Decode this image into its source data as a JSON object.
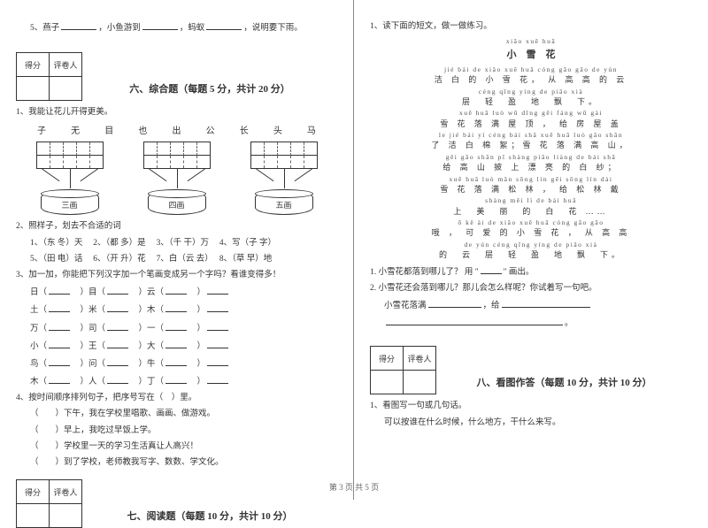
{
  "left": {
    "q5": {
      "prefix": "5、燕子",
      "mid1": "，小鱼游到",
      "mid2": "，蚂蚁",
      "suffix": "，说明要下雨。"
    },
    "score": {
      "label1": "得分",
      "label2": "评卷人"
    },
    "section6": {
      "title": "六、综合题（每题 5 分，共计 20 分）"
    },
    "s6q1": {
      "text": "1、我能让花儿开得更美。",
      "chars": [
        "子",
        "无",
        "目",
        "也",
        "出",
        "公",
        "长",
        "头",
        "马"
      ],
      "cyls": [
        "三画",
        "四画",
        "五画"
      ]
    },
    "s6q2": {
      "text": "2、照样子，划去不合适的词",
      "items": [
        "1、（东 冬）天",
        "2、（都 多）是",
        "3、（千 干）万",
        "4、写（子 字）",
        "5、（田 电）话",
        "6、（开 升）花",
        "7、白（云 去）",
        "8、（草 早）地"
      ]
    },
    "s6q3": {
      "text": "3、加一加，你能把下列汉字加一个笔画变成另一个字吗？看谁变得多！",
      "rows": [
        [
          "日（",
          "）目（",
          "）云（",
          "）"
        ],
        [
          "土（",
          "）米（",
          "）木（",
          "）"
        ],
        [
          "万（",
          "）司（",
          "）一（",
          "）"
        ],
        [
          "小（",
          "）王（",
          "）大（",
          "）"
        ],
        [
          "鸟（",
          "）问（",
          "）牛（",
          "）"
        ],
        [
          "木（",
          "）人（",
          "）丁（",
          "）"
        ]
      ]
    },
    "s6q4": {
      "text": "4、按时间顺序排列句子，把序号写在（　）里。",
      "items": [
        "（　　）下午，我在学校里唱歌、画画、做游戏。",
        "（　　）早上，我吃过早饭上学。",
        "（　　）学校里一天的学习生活真让人高兴！",
        "（　　）到了学校，老师教我写字、数数、学文化。"
      ]
    },
    "section7": {
      "title": "七、阅读题（每题 10 分，共计 10 分）"
    }
  },
  "right": {
    "q1intro": "1、读下面的短文，做一做练习。",
    "poem": {
      "title_py": "xiǎo  xuě  huā",
      "title": "小　雪　花",
      "lines": [
        {
          "py": "jié  bái  de xiǎo xuě  huā  cóng gāo  gāo de  yún",
          "hz": "洁 白 的 小 雪 花， 从 高 高 的 云"
        },
        {
          "py": "céng  qīng  yíng de  piāo  xià",
          "hz": "层　轻　盈　地　飘　下。"
        },
        {
          "py": "xuě  huā luò  wū  dǐng  gěi fáng wū  gài",
          "hz": "雪 花 落 满 屋 顶 ， 给 房 屋 盖"
        },
        {
          "py": "le jié bái  yì céng bái  shā  xuě  huā  luò  gǎo  shān",
          "hz": "了 洁 白 棉 絮；雪 花 落 满 高 山，"
        },
        {
          "py": "gěi gāo shān pī  shàng piāo liàng de bái shā",
          "hz": "给 高 山 披 上 漂 亮 的 白 纱；"
        },
        {
          "py": "xuě  huā  luò  mǎn sōng lín  gěi  sōng  lín  dài",
          "hz": "雪 花 落 满 松 林 ， 给 松 林 戴"
        },
        {
          "py": "shàng  měi  lì  de  bái  huā",
          "hz": "上　美　丽　的　白　花 ……"
        },
        {
          "py": "ō  kě ài  de xiǎo xuě  huā   cóng  gāo  gāo",
          "hz": "哦 ， 可 爱 的 小 雪 花 ， 从 高 高"
        },
        {
          "py": "de  yún  céng  qīng yíng  de  piāo  xià",
          "hz": "的　云　层　轻　盈　地　飘　下。"
        }
      ]
    },
    "pq1": {
      "text": "1. 小雪花都落到哪儿了？ 用 \"",
      "suffix": "\" 画出。"
    },
    "pq2": {
      "text": "2. 小雪花还会落到哪儿？那儿会怎么样呢？你试着写一句吧。",
      "line": "小雪花落满",
      "mid": "，给"
    },
    "score": {
      "label1": "得分",
      "label2": "评卷人"
    },
    "section8": {
      "title": "八、看图作答（每题 10 分，共计 10 分）"
    },
    "s8q1": {
      "text": "1、看图写一句或几句话。",
      "sub": "可以按谁在什么时候，什么地方，干什么来写。"
    }
  },
  "footer": "第 3 页 共 5 页"
}
